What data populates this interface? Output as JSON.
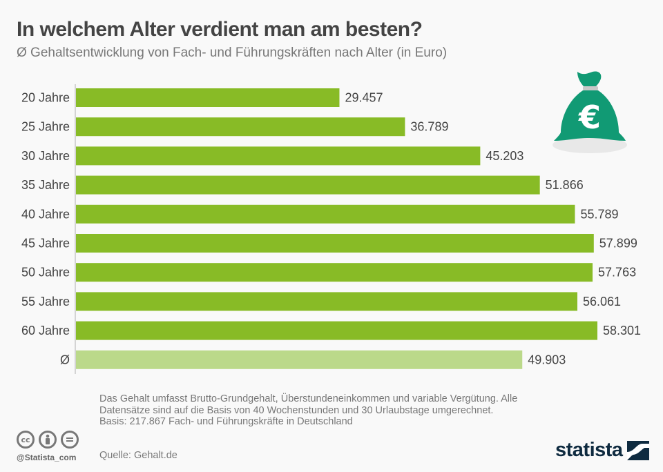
{
  "header": {
    "title": "In welchem Alter verdient man am besten?",
    "subtitle": "Ø Gehaltsentwicklung von Fach- und Führungskräften nach Alter (in Euro)"
  },
  "chart_data": {
    "type": "bar",
    "orientation": "horizontal",
    "title": "In welchem Alter verdient man am besten?",
    "subtitle": "Ø Gehaltsentwicklung von Fach- und Führungskräften nach Alter (in Euro)",
    "xlabel": "",
    "ylabel": "",
    "categories": [
      "20 Jahre",
      "25 Jahre",
      "30 Jahre",
      "35 Jahre",
      "40 Jahre",
      "45 Jahre",
      "50 Jahre",
      "55 Jahre",
      "60 Jahre",
      "Ø"
    ],
    "values": [
      29457,
      36789,
      45203,
      51866,
      55789,
      57899,
      57763,
      56061,
      58301,
      49903
    ],
    "value_labels": [
      "29.457",
      "36.789",
      "45.203",
      "51.866",
      "55.789",
      "57.899",
      "57.763",
      "56.061",
      "58.301",
      "49.903"
    ],
    "highlight": [
      false,
      false,
      false,
      false,
      false,
      false,
      false,
      false,
      false,
      true
    ],
    "xlim": [
      0,
      58301
    ],
    "grid": false,
    "colors": {
      "bar": "#88bb26",
      "average_bar": "#bbd98a",
      "axis": "#d4d4d4"
    }
  },
  "illustration": {
    "icon": "money-bag-euro-icon",
    "color": "#119a74"
  },
  "footer": {
    "notes": [
      "Das Gehalt umfasst Brutto-Grundgehalt, Überstundeneinkommen und variable Vergütung. Alle Datensätze sind auf die Basis von 40 Wochenstunden und 30 Urlaubstage umgerechnet.",
      "Basis: 217.867 Fach- und Führungskräfte in Deutschland"
    ],
    "source": "Quelle: Gehalt.de",
    "handle": "@Statista_com",
    "license_icons": [
      "cc-icon",
      "attribution-icon",
      "no-derivatives-icon"
    ],
    "brand": "statista"
  }
}
